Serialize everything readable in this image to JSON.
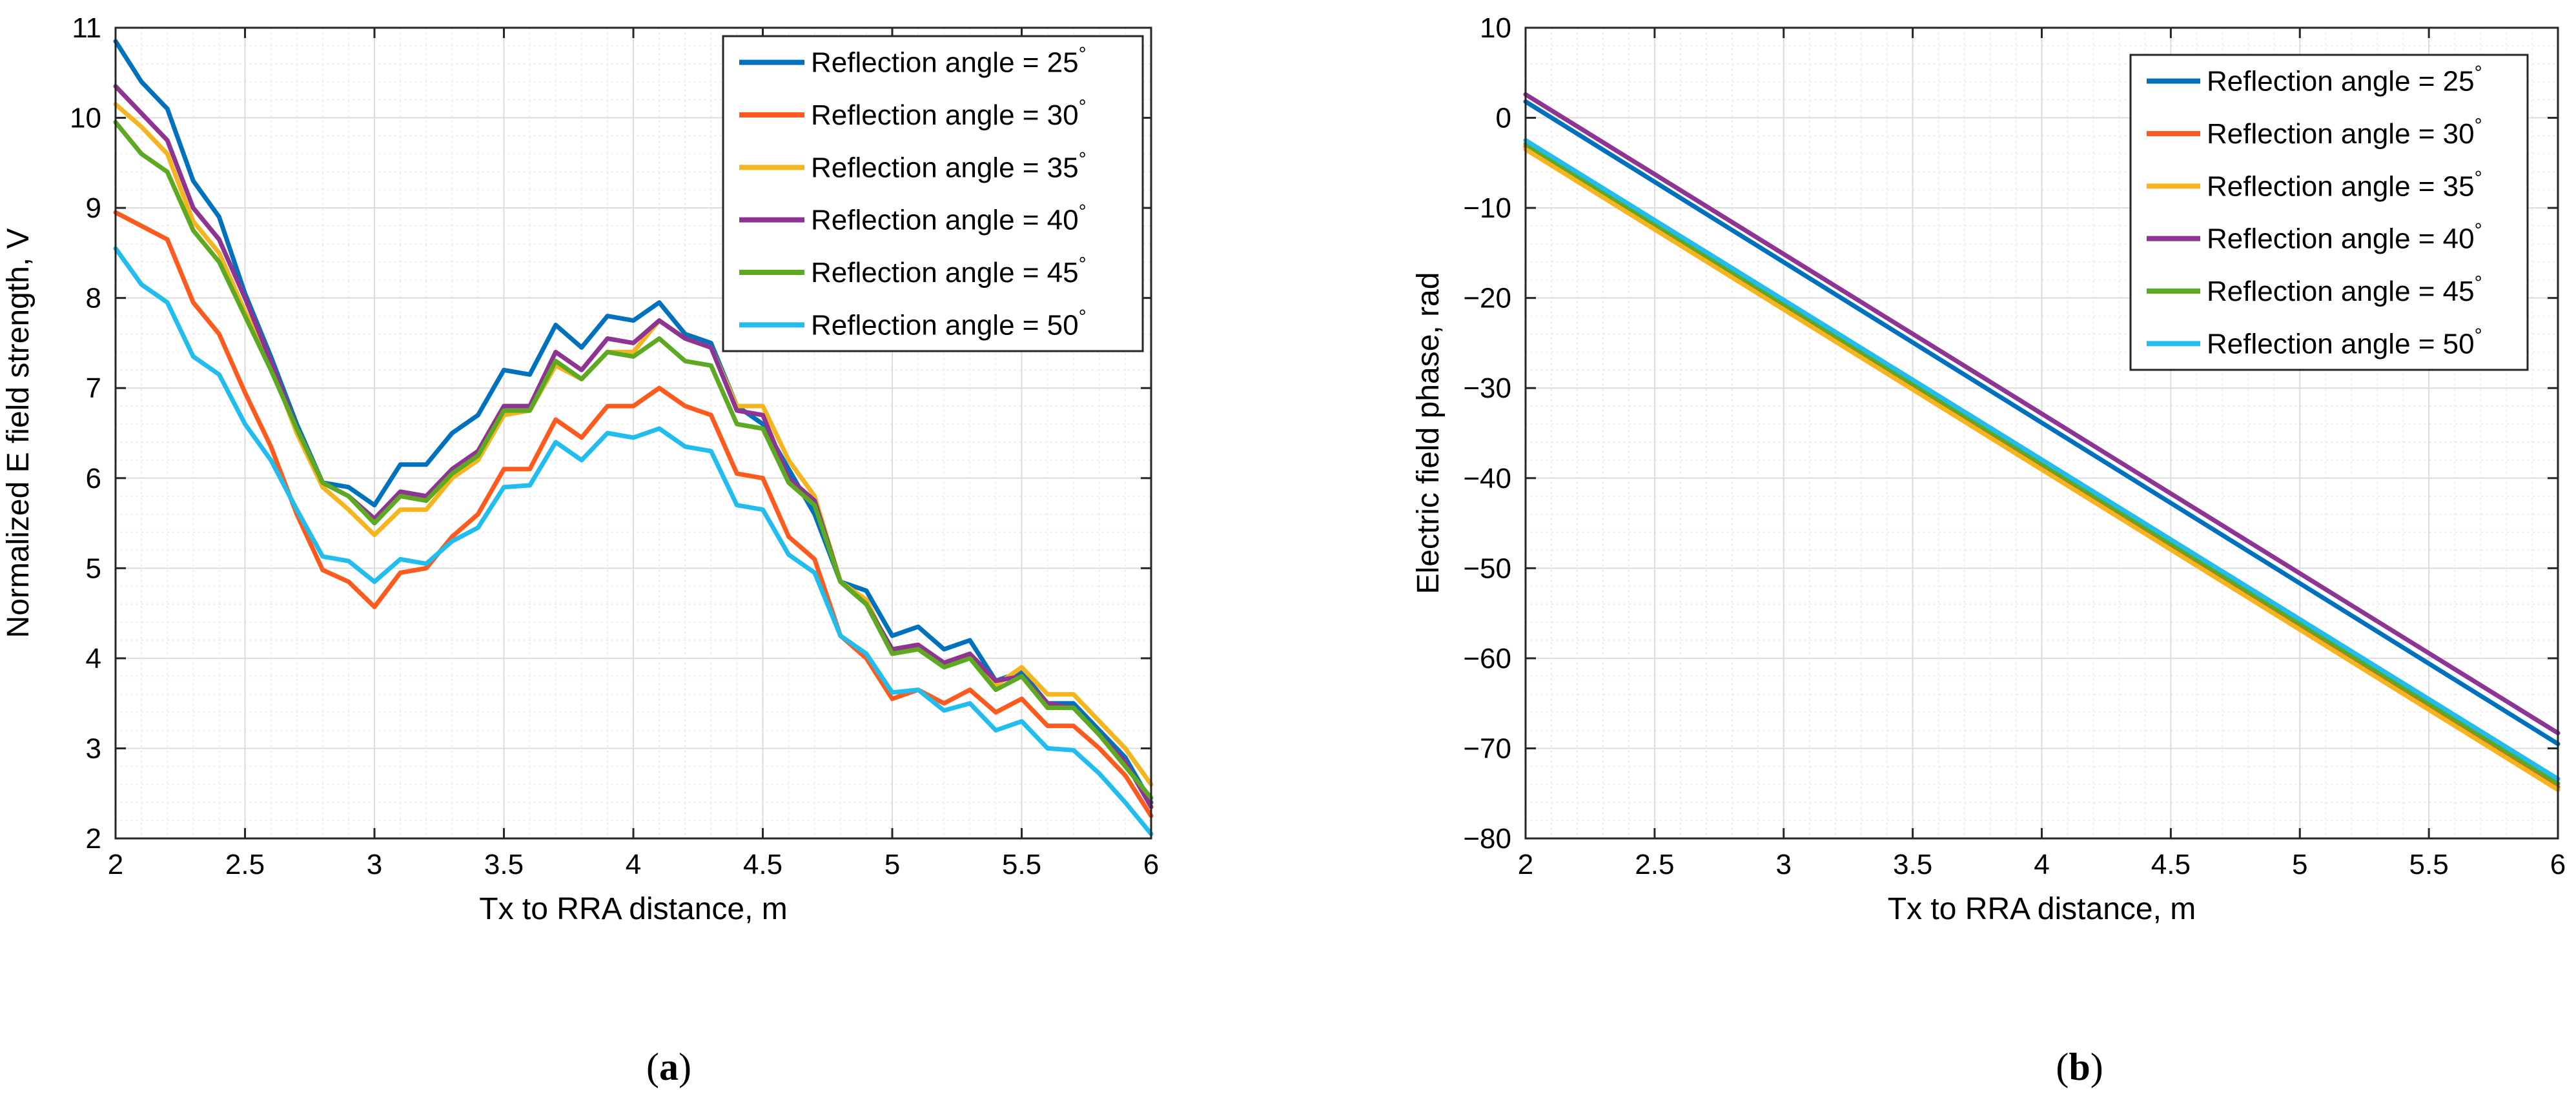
{
  "colors": {
    "axis": "#262626",
    "grid_major": "#dcdcdc",
    "grid_minor": "#ededed",
    "series": [
      "#0072BD",
      "#FF5A1E",
      "#F5B51E",
      "#8E3492",
      "#5DA922",
      "#21BDEE"
    ]
  },
  "panels": [
    {
      "label": "(a)",
      "label_bold": "a"
    },
    {
      "label": "(b)",
      "label_bold": "b"
    }
  ],
  "chart_data": [
    {
      "type": "line",
      "xlabel": "Tx to RRA distance, m",
      "ylabel": "Normalized E field strength, V",
      "xlim": [
        2,
        6
      ],
      "ylim": [
        2,
        11
      ],
      "xticks": [
        2,
        2.5,
        3,
        3.5,
        4,
        4.5,
        5,
        5.5,
        6
      ],
      "xtick_labels": [
        "2",
        "2.5",
        "3",
        "3.5",
        "4",
        "4.5",
        "5",
        "5.5",
        "6"
      ],
      "yticks": [
        2,
        3,
        4,
        5,
        6,
        7,
        8,
        9,
        10,
        11
      ],
      "ytick_labels": [
        "2",
        "3",
        "4",
        "5",
        "6",
        "7",
        "8",
        "9",
        "10",
        "11"
      ],
      "grid": true,
      "minor_grid": true,
      "legend_position": "top-right",
      "x": [
        2,
        2.1,
        2.2,
        2.3,
        2.4,
        2.5,
        2.6,
        2.7,
        2.8,
        2.9,
        3,
        3.1,
        3.2,
        3.3,
        3.4,
        3.5,
        3.6,
        3.7,
        3.8,
        3.9,
        4,
        4.1,
        4.2,
        4.3,
        4.4,
        4.5,
        4.6,
        4.7,
        4.8,
        4.9,
        5,
        5.1,
        5.2,
        5.3,
        5.4,
        5.5,
        5.6,
        5.7,
        5.8,
        5.9,
        6
      ],
      "series": [
        {
          "name": "Reflection angle = 25",
          "unit": "°",
          "values": [
            10.85,
            10.4,
            10.1,
            9.3,
            8.9,
            8.05,
            7.35,
            6.6,
            5.95,
            5.9,
            5.7,
            6.15,
            6.15,
            6.5,
            6.7,
            7.2,
            7.15,
            7.7,
            7.45,
            7.8,
            7.75,
            7.95,
            7.6,
            7.5,
            6.8,
            6.6,
            6.1,
            5.6,
            4.85,
            4.75,
            4.25,
            4.35,
            4.1,
            4.2,
            3.75,
            3.85,
            3.5,
            3.5,
            3.2,
            2.9,
            2.4
          ]
        },
        {
          "name": "Reflection angle = 30",
          "unit": "°",
          "values": [
            8.95,
            8.8,
            8.65,
            7.95,
            7.6,
            6.95,
            6.35,
            5.6,
            4.98,
            4.85,
            4.57,
            4.95,
            5.0,
            5.35,
            5.6,
            6.1,
            6.1,
            6.65,
            6.45,
            6.8,
            6.8,
            7.0,
            6.8,
            6.7,
            6.05,
            6.0,
            5.35,
            5.1,
            4.25,
            4.0,
            3.55,
            3.65,
            3.5,
            3.65,
            3.4,
            3.55,
            3.25,
            3.25,
            3.0,
            2.7,
            2.25
          ]
        },
        {
          "name": "Reflection angle = 35",
          "unit": "°",
          "values": [
            10.15,
            9.9,
            9.6,
            8.85,
            8.5,
            7.85,
            7.25,
            6.5,
            5.9,
            5.65,
            5.37,
            5.65,
            5.65,
            6.0,
            6.2,
            6.7,
            6.75,
            7.25,
            7.1,
            7.4,
            7.4,
            7.75,
            7.55,
            7.45,
            6.8,
            6.8,
            6.2,
            5.8,
            4.85,
            4.65,
            4.05,
            4.1,
            3.95,
            4.05,
            3.7,
            3.9,
            3.6,
            3.6,
            3.3,
            3.0,
            2.6
          ]
        },
        {
          "name": "Reflection angle = 40",
          "unit": "°",
          "values": [
            10.35,
            10.05,
            9.75,
            9.0,
            8.65,
            8.0,
            7.3,
            6.55,
            5.95,
            5.8,
            5.55,
            5.85,
            5.8,
            6.1,
            6.3,
            6.8,
            6.8,
            7.4,
            7.2,
            7.55,
            7.5,
            7.75,
            7.55,
            7.45,
            6.75,
            6.7,
            6.0,
            5.75,
            4.85,
            4.6,
            4.1,
            4.15,
            3.95,
            4.05,
            3.75,
            3.8,
            3.5,
            3.45,
            3.15,
            2.85,
            2.35
          ]
        },
        {
          "name": "Reflection angle = 45",
          "unit": "°",
          "values": [
            9.95,
            9.6,
            9.4,
            8.75,
            8.4,
            7.8,
            7.2,
            6.55,
            5.95,
            5.8,
            5.5,
            5.8,
            5.75,
            6.05,
            6.25,
            6.75,
            6.75,
            7.3,
            7.1,
            7.4,
            7.35,
            7.55,
            7.3,
            7.25,
            6.6,
            6.55,
            5.95,
            5.7,
            4.85,
            4.6,
            4.05,
            4.1,
            3.9,
            4.0,
            3.65,
            3.8,
            3.45,
            3.45,
            3.15,
            2.8,
            2.45
          ]
        },
        {
          "name": "Reflection angle = 50",
          "unit": "°",
          "values": [
            8.55,
            8.15,
            7.95,
            7.35,
            7.15,
            6.6,
            6.2,
            5.65,
            5.13,
            5.08,
            4.85,
            5.1,
            5.05,
            5.3,
            5.45,
            5.9,
            5.92,
            6.4,
            6.2,
            6.5,
            6.45,
            6.55,
            6.35,
            6.3,
            5.7,
            5.65,
            5.15,
            4.95,
            4.25,
            4.05,
            3.62,
            3.65,
            3.42,
            3.5,
            3.2,
            3.3,
            3.0,
            2.98,
            2.72,
            2.4,
            2.05
          ]
        }
      ]
    },
    {
      "type": "line",
      "xlabel": "Tx to RRA distance, m",
      "ylabel": "Electric field phase, rad",
      "xlim": [
        2,
        6
      ],
      "ylim": [
        -80,
        10
      ],
      "xticks": [
        2,
        2.5,
        3,
        3.5,
        4,
        4.5,
        5,
        5.5,
        6
      ],
      "xtick_labels": [
        "2",
        "2.5",
        "3",
        "3.5",
        "4",
        "4.5",
        "5",
        "5.5",
        "6"
      ],
      "yticks": [
        -80,
        -70,
        -60,
        -50,
        -40,
        -30,
        -20,
        -10,
        0,
        10
      ],
      "ytick_labels": [
        "−80",
        "−70",
        "−60",
        "−50",
        "−40",
        "−30",
        "−20",
        "−10",
        "0",
        "10"
      ],
      "grid": true,
      "minor_grid": true,
      "legend_position": "top-right",
      "x": [
        2,
        6
      ],
      "series": [
        {
          "name": "Reflection angle = 25",
          "unit": "°",
          "values": [
            1.8,
            -69.5
          ]
        },
        {
          "name": "Reflection angle = 30",
          "unit": "°",
          "values": [
            -3.2,
            -74.3
          ]
        },
        {
          "name": "Reflection angle = 35",
          "unit": "°",
          "values": [
            -3.5,
            -74.6
          ]
        },
        {
          "name": "Reflection angle = 40",
          "unit": "°",
          "values": [
            2.6,
            -68.3
          ]
        },
        {
          "name": "Reflection angle = 45",
          "unit": "°",
          "values": [
            -2.9,
            -73.9
          ]
        },
        {
          "name": "Reflection angle = 50",
          "unit": "°",
          "values": [
            -2.5,
            -73.4
          ]
        }
      ]
    }
  ]
}
